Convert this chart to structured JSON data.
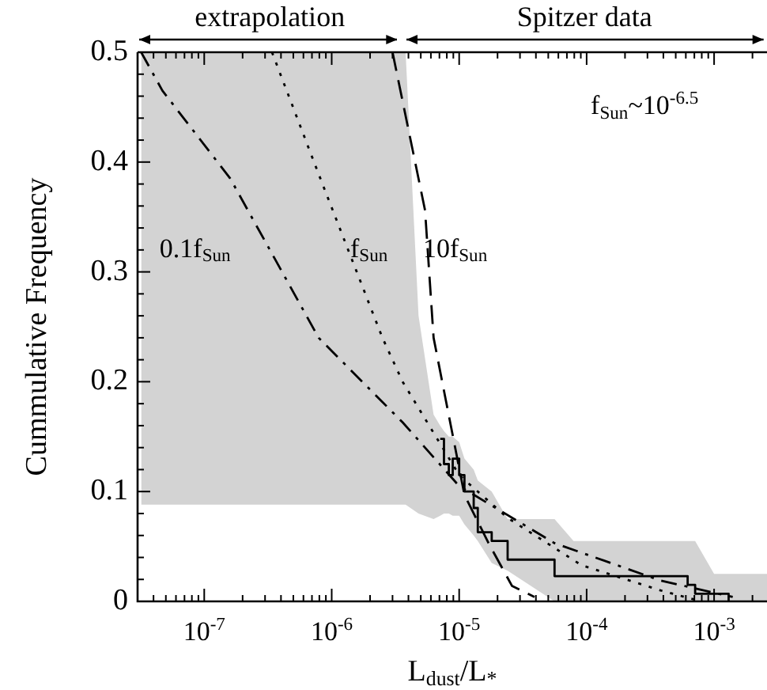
{
  "chart_data": {
    "type": "line",
    "xlabel": "L$_{dust}$/L$_{*}$",
    "ylabel": "Cummulative Frequency",
    "log": "x",
    "xlim": [
      3.2e-08,
      0.0026
    ],
    "ylim": [
      0,
      0.5
    ],
    "xticks": [
      {
        "value": 4e-08,
        "label": null
      },
      {
        "value": 5e-08,
        "label": null
      },
      {
        "value": 6e-08,
        "label": null
      },
      {
        "value": 7e-08,
        "label": null
      },
      {
        "value": 8e-08,
        "label": null
      },
      {
        "value": 9e-08,
        "label": null
      },
      {
        "value": 1e-07,
        "label": "10$^{-7}$"
      },
      {
        "value": 2e-07,
        "label": null
      },
      {
        "value": 3e-07,
        "label": null
      },
      {
        "value": 4e-07,
        "label": null
      },
      {
        "value": 5e-07,
        "label": null
      },
      {
        "value": 6e-07,
        "label": null
      },
      {
        "value": 7e-07,
        "label": null
      },
      {
        "value": 8e-07,
        "label": null
      },
      {
        "value": 9e-07,
        "label": null
      },
      {
        "value": 1e-06,
        "label": "10$^{-6}$"
      },
      {
        "value": 2e-06,
        "label": null
      },
      {
        "value": 3e-06,
        "label": null
      },
      {
        "value": 4e-06,
        "label": null
      },
      {
        "value": 5e-06,
        "label": null
      },
      {
        "value": 6e-06,
        "label": null
      },
      {
        "value": 7e-06,
        "label": null
      },
      {
        "value": 8e-06,
        "label": null
      },
      {
        "value": 9e-06,
        "label": null
      },
      {
        "value": 1e-05,
        "label": "10$^{-5}$"
      },
      {
        "value": 2e-05,
        "label": null
      },
      {
        "value": 3e-05,
        "label": null
      },
      {
        "value": 4e-05,
        "label": null
      },
      {
        "value": 5e-05,
        "label": null
      },
      {
        "value": 6e-05,
        "label": null
      },
      {
        "value": 7e-05,
        "label": null
      },
      {
        "value": 8e-05,
        "label": null
      },
      {
        "value": 9e-05,
        "label": null
      },
      {
        "value": 0.0001,
        "label": "10$^{-4}$"
      },
      {
        "value": 0.0002,
        "label": null
      },
      {
        "value": 0.0003,
        "label": null
      },
      {
        "value": 0.0004,
        "label": null
      },
      {
        "value": 0.0005,
        "label": null
      },
      {
        "value": 0.0006,
        "label": null
      },
      {
        "value": 0.0007,
        "label": null
      },
      {
        "value": 0.0008,
        "label": null
      },
      {
        "value": 0.0009,
        "label": null
      },
      {
        "value": 0.001,
        "label": "10$^{-3}$"
      },
      {
        "value": 0.002,
        "label": null
      }
    ],
    "yticks": [
      0,
      {
        "value": 0.02,
        "label": null
      },
      {
        "value": 0.04,
        "label": null
      },
      {
        "value": 0.06,
        "label": null
      },
      {
        "value": 0.08,
        "label": null
      },
      0.1,
      {
        "value": 0.12,
        "label": null
      },
      {
        "value": 0.14,
        "label": null
      },
      {
        "value": 0.16,
        "label": null
      },
      {
        "value": 0.18,
        "label": null
      },
      0.2,
      {
        "value": 0.22,
        "label": null
      },
      {
        "value": 0.24,
        "label": null
      },
      {
        "value": 0.26,
        "label": null
      },
      {
        "value": 0.28,
        "label": null
      },
      0.3,
      {
        "value": 0.32,
        "label": null
      },
      {
        "value": 0.34,
        "label": null
      },
      {
        "value": 0.36,
        "label": null
      },
      {
        "value": 0.38,
        "label": null
      },
      0.4,
      {
        "value": 0.42,
        "label": null
      },
      {
        "value": 0.44,
        "label": null
      },
      {
        "value": 0.46,
        "label": null
      },
      {
        "value": 0.48,
        "label": null
      },
      0.5
    ],
    "grid": false,
    "legend": false,
    "series": [
      {
        "type": "step",
        "color": "#000000",
        "line_style": "solid",
        "x": [
          3.2e-08,
          3.8e-06,
          4.8e-06,
          6.3e-06,
          7.1e-06,
          7.6e-06,
          8.3e-06,
          8.9e-06,
          1e-05,
          1.1e-05,
          1.3e-05,
          1.4e-05,
          1.8e-05,
          2.4e-05,
          5.6e-05,
          7.9e-05,
          0.00062,
          0.00071,
          0.001,
          0.0013,
          0.0026
        ],
        "values": [
          null,
          null,
          null,
          null,
          0.148,
          0.125,
          0.115,
          0.13,
          0.115,
          0.1,
          0.085,
          0.063,
          0.055,
          0.038,
          0.023,
          0.023,
          0.015,
          0.007,
          0.007,
          0,
          null
        ],
        "lower": [
          0.088,
          0.088,
          0.08,
          0.075,
          0.078,
          0.08,
          0.08,
          0.078,
          0.078,
          0.07,
          0.06,
          0.055,
          0.035,
          0.028,
          0,
          0,
          0,
          0,
          0,
          0,
          0
        ],
        "upper": [
          0.5,
          0.5,
          0.26,
          0.17,
          0.16,
          0.155,
          0.15,
          0.15,
          0.145,
          0.13,
          0.12,
          0.11,
          0.1,
          0.075,
          0.075,
          0.055,
          0.055,
          0.055,
          0.025,
          0.025,
          0.025
        ]
      },
      {
        "color": "#000000",
        "line_style": "dashdot",
        "x": [
          3.2e-08,
          4.7e-08,
          1.6e-07,
          7.9e-07,
          3.6e-06,
          1e-05,
          5.6e-05,
          0.00038,
          0.0014
        ],
        "values": [
          0.5,
          0.465,
          0.385,
          0.24,
          0.163,
          0.105,
          0.053,
          0.019,
          0.004
        ]
      },
      {
        "color": "#000000",
        "line_style": "dotted",
        "x": [
          3.4e-07,
          7.9e-07,
          2.5e-06,
          3.6e-06,
          1e-05,
          2.4e-05,
          9.1e-05,
          0.00038,
          0.00079
        ],
        "values": [
          0.5,
          0.389,
          0.24,
          0.2,
          0.115,
          0.076,
          0.033,
          0.01,
          0
        ]
      },
      {
        "color": "#000000",
        "line_style": "dashed",
        "x": [
          3e-06,
          5.4e-06,
          6.3e-06,
          8.5e-06,
          1.1e-05,
          1.7e-05,
          2.6e-05,
          3.9e-05
        ],
        "values": [
          0.5,
          0.356,
          0.24,
          0.163,
          0.097,
          0.053,
          0.014,
          0.004
        ]
      }
    ],
    "annotations": [
      "extrapolation",
      "Spitzer data",
      "0.1f$_{Sun}$",
      {
        "text": "f$_{Sun}$",
        "x": 1.4e-06,
        "y": 0.32
      },
      {
        "text": "10f$_{Sun}$",
        "x": 5.2e-06,
        "y": 0.32
      },
      "f$_{Sun}$~10$^{-6.5}$"
    ]
  }
}
